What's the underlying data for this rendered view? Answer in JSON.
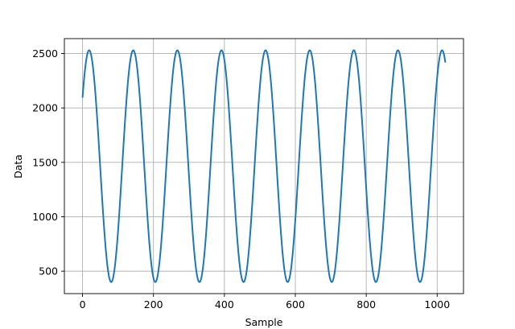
{
  "chart_data": {
    "type": "line",
    "title": "",
    "xlabel": "Sample",
    "ylabel": "Data",
    "xlim": [
      -51.2,
      1074.2
    ],
    "ylim": [
      294,
      2637
    ],
    "xticks": [
      0,
      200,
      400,
      600,
      800,
      1000
    ],
    "yticks": [
      500,
      1000,
      1500,
      2000,
      2500
    ],
    "grid": true,
    "series": [
      {
        "color": "#1f77b4",
        "n_samples": 1024,
        "signal": {
          "form": "sinusoid",
          "offset": 1465,
          "amplitude": 1065,
          "period_samples": 124.4,
          "start_value": 2094,
          "start_direction": "rising"
        }
      }
    ]
  }
}
